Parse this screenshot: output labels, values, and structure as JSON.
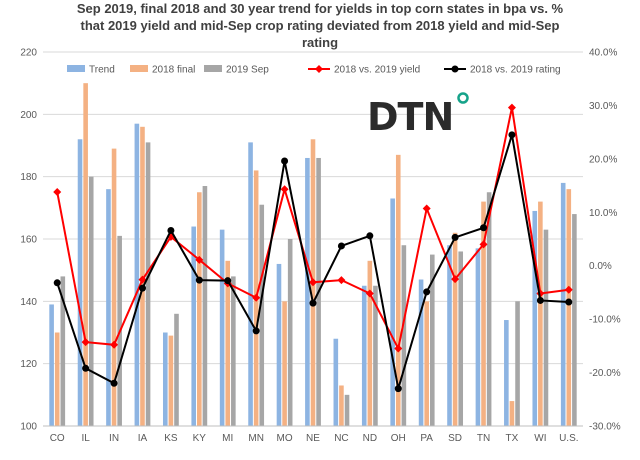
{
  "chart_data": {
    "type": "bar+line",
    "title_lines": [
      "Sep 2019, final 2018 and 30 year trend for yields in top corn states in bpa vs. %",
      "that 2019 yield and mid-Sep crop rating deviated from 2018 yield and mid-Sep",
      "rating"
    ],
    "logo_text": "DTN",
    "categories": [
      "CO",
      "IL",
      "IN",
      "IA",
      "KS",
      "KY",
      "MI",
      "MN",
      "MO",
      "NE",
      "NC",
      "ND",
      "OH",
      "PA",
      "SD",
      "TN",
      "TX",
      "WI",
      "U.S."
    ],
    "y_left": {
      "min": 100,
      "max": 220,
      "step": 20,
      "ticks": [
        "100",
        "120",
        "140",
        "160",
        "180",
        "200",
        "220"
      ]
    },
    "y_right": {
      "min": -30,
      "max": 40,
      "step": 10,
      "ticks": [
        "-30.0%",
        "-20.0%",
        "-10.0%",
        "0.0%",
        "10.0%",
        "20.0%",
        "30.0%",
        "40.0%"
      ]
    },
    "legend": {
      "position": "top"
    },
    "bar_series": [
      {
        "name": "Trend",
        "color": "#8db4e2",
        "values": [
          139,
          192,
          176,
          197,
          130,
          164,
          163,
          191,
          152,
          186,
          128,
          145,
          173,
          147,
          158,
          157,
          134,
          169,
          178
        ]
      },
      {
        "name": "2018 final",
        "color": "#f4b183",
        "values": [
          130,
          210,
          189,
          196,
          129,
          175,
          153,
          182,
          140,
          192,
          113,
          153,
          187,
          140,
          162,
          172,
          108,
          172,
          176
        ]
      },
      {
        "name": "2019 Sep",
        "color": "#a6a6a6",
        "values": [
          148,
          180,
          161,
          191,
          136,
          177,
          148,
          171,
          160,
          186,
          110,
          145,
          158,
          155,
          156,
          175,
          140,
          163,
          168
        ]
      }
    ],
    "line_series": [
      {
        "name": "2018 vs. 2019 yield",
        "color": "#ff0000",
        "marker": "diamond",
        "values": [
          13.8,
          -14.3,
          -14.8,
          -2.6,
          5.4,
          1.1,
          -3.3,
          -6.0,
          14.3,
          -3.1,
          -2.7,
          -5.2,
          -15.5,
          10.7,
          -2.5,
          4.0,
          29.6,
          -5.2,
          -4.5
        ]
      },
      {
        "name": "2018 vs. 2019 rating",
        "color": "#000000",
        "marker": "circle",
        "values": [
          -3.2,
          -19.2,
          -22.0,
          -4.2,
          6.6,
          -2.7,
          -2.8,
          -12.2,
          19.6,
          -7.0,
          3.7,
          5.6,
          -23.0,
          -4.9,
          5.3,
          7.1,
          24.5,
          -6.5,
          -6.8
        ]
      }
    ]
  }
}
